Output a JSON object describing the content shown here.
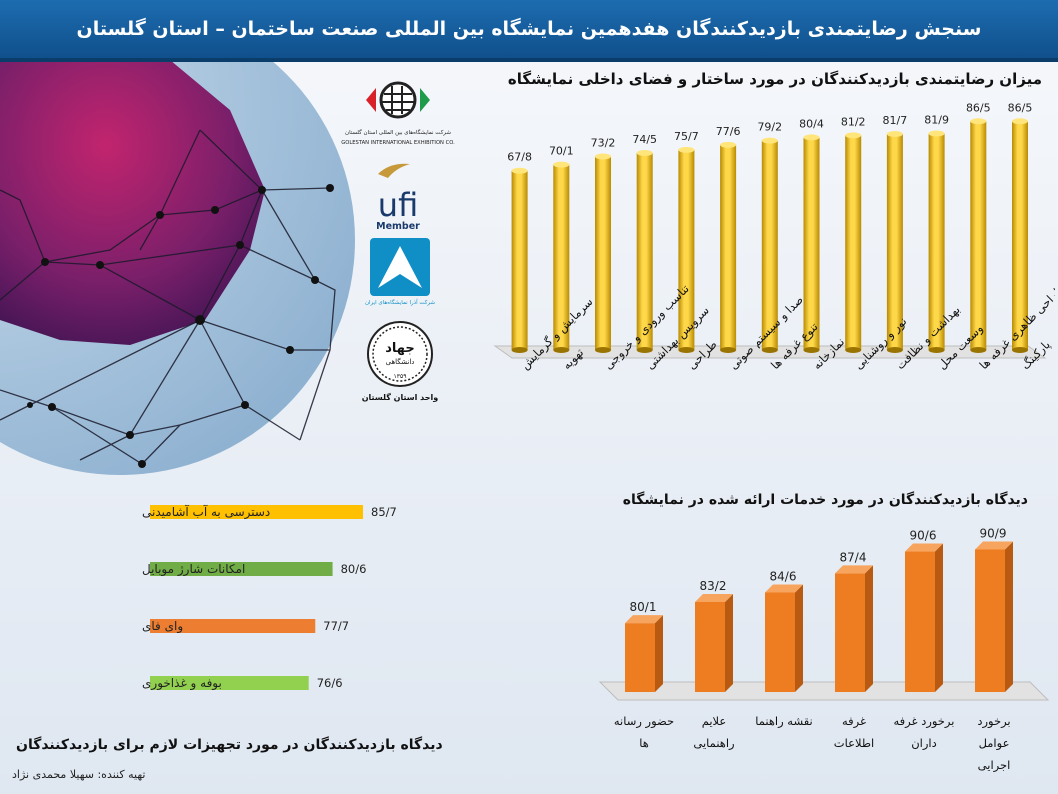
{
  "header": {
    "title": "سنجش رضایتمندی بازدیدکنندگان هفدهمین نمایشگاه بین المللی صنعت ساختمان – استان گلستان"
  },
  "logos": {
    "golestan_fa": "شرکت نمایشگاه‌های بین المللی استان گلستان",
    "golestan_en": "GOLESTAN INTERNATIONAL EXHIBITION CO.",
    "ufi": "ufi",
    "ufi_member": "Member",
    "azar_caption": "شرکت آذرا نمایشگاه‌های ایران",
    "jahad_title": "جهاد",
    "jahad_sub": "دانشگاهی",
    "jahad_year": "۱۳۵۹",
    "jahad_caption": "واحد استان گلستان"
  },
  "credit": "تهیه کننده: سهیلا محمدی نژاد",
  "colors": {
    "header": "#10508c",
    "top_bars": "#f5c200",
    "services_bars": "#ee7d22",
    "equip_1": "#ffc000",
    "equip_2": "#70ad47",
    "equip_3": "#ed7d31",
    "equip_4": "#92d050"
  },
  "chart_data": [
    {
      "type": "bar",
      "title": "میزان رضایتمندی بازدیدکنندگان در مورد ساختار و فضای داخلی نمایشگاه",
      "categories": [
        "پارکینگ",
        "طراحی ظاهری غرفه ها",
        "وسعت محل",
        "بهداشت و نظافت",
        "نور و روشنایی",
        "نمازخانه",
        "تنوع غرفه ها",
        "صدا و سیستم صوتی",
        "طراحی",
        "سرویس بهداشتی",
        "تناسب ورودی و خروجی",
        "تهویه",
        "سرمایش و گرمایش"
      ],
      "values": [
        86.5,
        86.5,
        81.9,
        81.7,
        81.2,
        80.4,
        79.2,
        77.6,
        75.7,
        74.5,
        73.2,
        70.1,
        67.8
      ],
      "labels": [
        "86/5",
        "86/5",
        "81/9",
        "81/7",
        "81/2",
        "80/4",
        "79/2",
        "77/6",
        "75/7",
        "74/5",
        "73/2",
        "70/1",
        "67/8"
      ],
      "ylim": [
        0,
        100
      ]
    },
    {
      "type": "bar",
      "title": "دیدگاه بازدیدکنندگان در مورد خدمات ارائه شده در نمایشگاه",
      "categories": [
        "برخورد عوامل اجرایی",
        "برخورد غرفه داران",
        "غرفه اطلاعات",
        "نقشه راهنما",
        "علایم راهنمایی",
        "حضور رسانه ها"
      ],
      "values": [
        90.9,
        90.6,
        87.4,
        84.6,
        83.2,
        80.1
      ],
      "labels": [
        "90/9",
        "90/6",
        "87/4",
        "84/6",
        "83/2",
        "80/1"
      ],
      "ylim": [
        70,
        95
      ]
    },
    {
      "type": "bar",
      "orientation": "horizontal",
      "title": "دیدگاه بازدیدکنندگان در مورد تجهیزات لازم برای بازدیدکنندگان",
      "categories": [
        "دسترسی به آب آشامیدنی",
        "امکانات شارژ موبایل",
        "وای فای",
        "بوفه و غذاخوری"
      ],
      "values": [
        85.7,
        80.6,
        77.7,
        76.6
      ],
      "labels": [
        "85/7",
        "80/6",
        "77/7",
        "76/6"
      ],
      "xlim": [
        50,
        100
      ]
    }
  ]
}
